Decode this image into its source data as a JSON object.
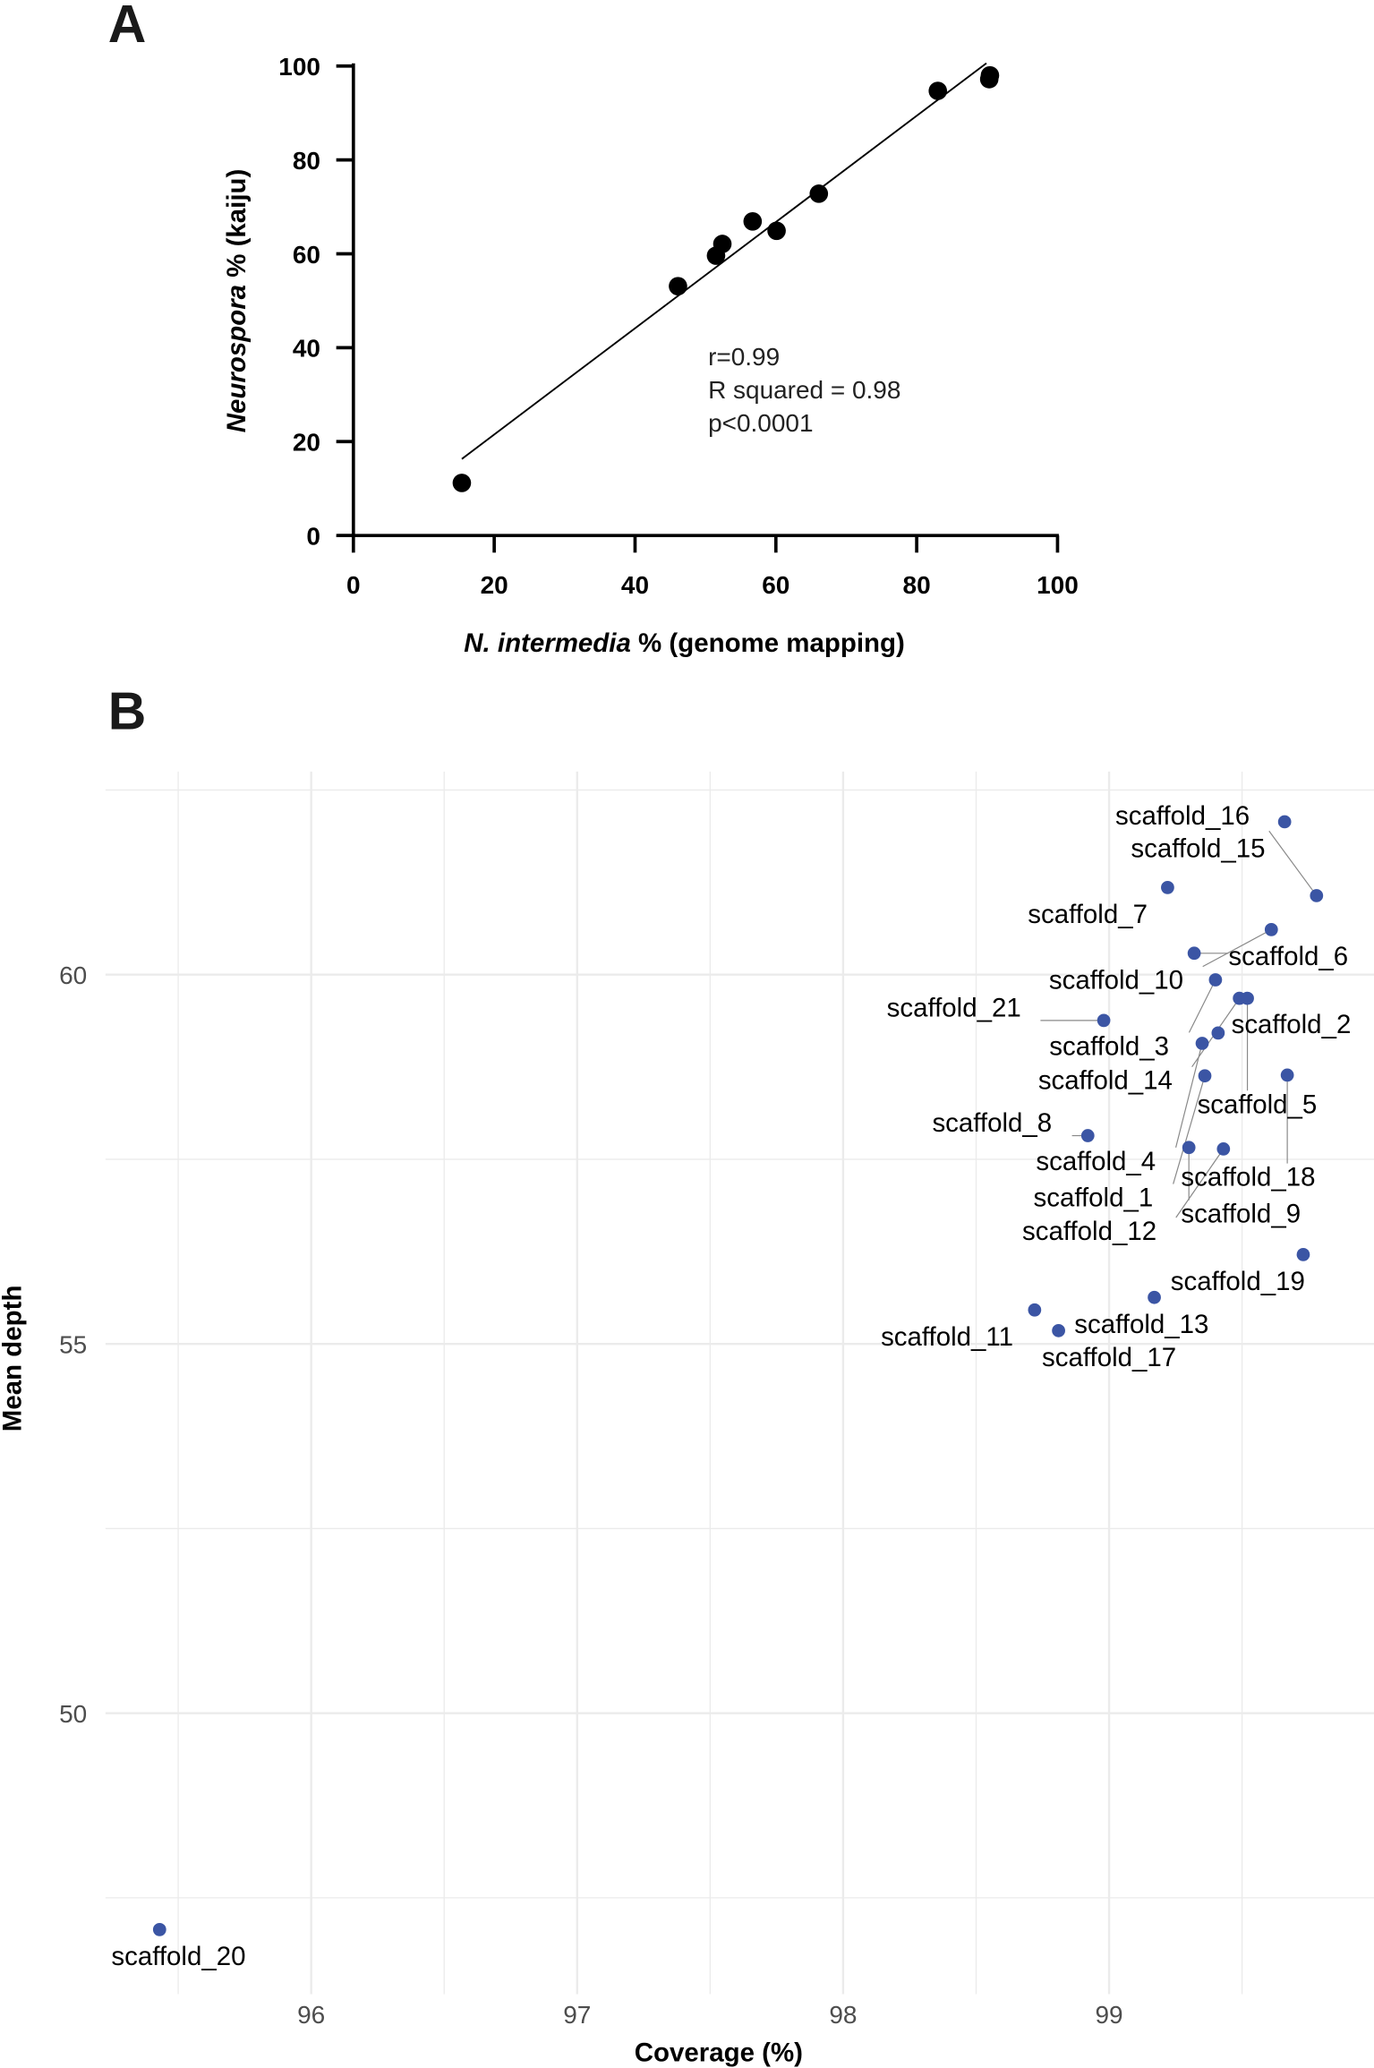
{
  "chart_data": [
    {
      "panel": "A",
      "type": "scatter",
      "xlabel_italic": "N. intermedia",
      "xlabel_rest": " % (genome mapping)",
      "ylabel_italic": "Neurospora",
      "ylabel_rest": " % (kaiju)",
      "xlim": [
        0,
        100
      ],
      "ylim": [
        0,
        100
      ],
      "xticks": [
        "0",
        "20",
        "40",
        "60",
        "80",
        "100"
      ],
      "yticks": [
        "0",
        "20",
        "40",
        "60",
        "80",
        "100"
      ],
      "grid": false,
      "point_color": "#000000",
      "points": [
        {
          "x": 15.4,
          "y": 11.2
        },
        {
          "x": 46.1,
          "y": 53.1
        },
        {
          "x": 51.5,
          "y": 59.6
        },
        {
          "x": 52.4,
          "y": 62.1
        },
        {
          "x": 56.7,
          "y": 66.9
        },
        {
          "x": 60.1,
          "y": 64.9
        },
        {
          "x": 66.1,
          "y": 72.8
        },
        {
          "x": 83.0,
          "y": 94.7
        },
        {
          "x": 90.3,
          "y": 97.2
        },
        {
          "x": 90.4,
          "y": 98.0
        }
      ],
      "fit_line": {
        "x": [
          15.4,
          89.9
        ],
        "y": [
          16.3,
          100.6
        ]
      },
      "annotations": [
        "r=0.99",
        "R squared = 0.98",
        "p<0.0001"
      ]
    },
    {
      "panel": "B",
      "type": "scatter",
      "xlabel": "Coverage (%)",
      "ylabel": "Mean depth",
      "xlim": [
        95.28,
        100.0
      ],
      "ylim": [
        46.5,
        62.6
      ],
      "xticks": [
        "96",
        "97",
        "98",
        "99"
      ],
      "yticks": [
        "50",
        "55",
        "60"
      ],
      "grid": true,
      "point_color": "#3b55a4",
      "points": [
        {
          "label": "scaffold_15",
          "x": 99.66,
          "y": 62.07
        },
        {
          "label": "scaffold_7",
          "x": 99.22,
          "y": 61.18
        },
        {
          "label": "scaffold_16",
          "x": 99.78,
          "y": 61.07
        },
        {
          "label": "scaffold_10",
          "x": 99.61,
          "y": 60.61
        },
        {
          "label": "scaffold_6",
          "x": 99.32,
          "y": 60.29
        },
        {
          "label": "scaffold_3",
          "x": 99.4,
          "y": 59.93
        },
        {
          "label": "scaffold_14",
          "x": 99.49,
          "y": 59.68
        },
        {
          "label": "scaffold_5",
          "x": 99.52,
          "y": 59.68
        },
        {
          "label": "scaffold_21",
          "x": 98.98,
          "y": 59.38
        },
        {
          "label": "scaffold_2",
          "x": 99.41,
          "y": 59.21
        },
        {
          "label": "scaffold_4",
          "x": 99.35,
          "y": 59.07
        },
        {
          "label": "scaffold_1",
          "x": 99.36,
          "y": 58.63
        },
        {
          "label": "scaffold_18",
          "x": 99.67,
          "y": 58.64
        },
        {
          "label": "scaffold_8",
          "x": 98.92,
          "y": 57.82
        },
        {
          "label": "scaffold_9",
          "x": 99.3,
          "y": 57.66
        },
        {
          "label": "scaffold_12",
          "x": 99.43,
          "y": 57.64
        },
        {
          "label": "scaffold_19",
          "x": 99.73,
          "y": 56.21
        },
        {
          "label": "scaffold_13",
          "x": 99.17,
          "y": 55.63
        },
        {
          "label": "scaffold_11",
          "x": 98.72,
          "y": 55.46
        },
        {
          "label": "scaffold_17",
          "x": 98.81,
          "y": 55.18
        },
        {
          "label": "scaffold_20",
          "x": 95.43,
          "y": 47.07
        }
      ]
    }
  ],
  "panel_letters": [
    "A",
    "B"
  ]
}
